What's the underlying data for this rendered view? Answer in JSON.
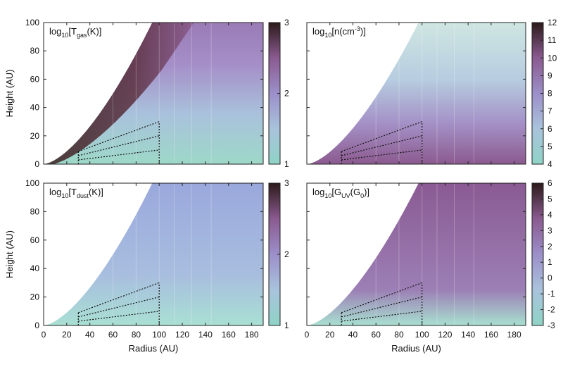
{
  "colors": {
    "scale": [
      "#8fd3c6",
      "#a9c3dc",
      "#9c8fc9",
      "#8a5a90",
      "#2b1a1a"
    ],
    "overlay": "#111111"
  },
  "chart_data": [
    {
      "type": "heatmap",
      "title_parts": {
        "pre": "log",
        "sub1": "10",
        "mid": "[T",
        "sub2": "gas",
        "post": "(K)]"
      },
      "xlabel": "",
      "ylabel": "Height (AU)",
      "xlim": [
        0,
        190
      ],
      "ylim": [
        0,
        100
      ],
      "x_ticks": [],
      "y_ticks": [
        0,
        20,
        40,
        60,
        80,
        100
      ],
      "colorbar": {
        "min": 1,
        "max": 3,
        "ticks": [
          1,
          2,
          3
        ]
      },
      "box": {
        "r_inner": 30,
        "r_outer": 100,
        "z_lines_outer": [
          10,
          20,
          30
        ],
        "z_lines_inner": [
          3,
          6,
          9
        ]
      }
    },
    {
      "type": "heatmap",
      "title_parts": {
        "pre": "log",
        "sub1": "10",
        "mid": "[n(cm",
        "sup": "-3",
        "post": ")]"
      },
      "xlabel": "",
      "ylabel": "",
      "xlim": [
        0,
        190
      ],
      "ylim": [
        0,
        100
      ],
      "x_ticks": [],
      "y_ticks": [],
      "colorbar": {
        "min": 4,
        "max": 12,
        "ticks": [
          4,
          5,
          6,
          7,
          8,
          9,
          10,
          11,
          12
        ]
      },
      "box": {
        "r_inner": 30,
        "r_outer": 100,
        "z_lines_outer": [
          10,
          20,
          30
        ],
        "z_lines_inner": [
          3,
          6,
          9
        ]
      }
    },
    {
      "type": "heatmap",
      "title_parts": {
        "pre": "log",
        "sub1": "10",
        "mid": "[T",
        "sub2": "dust",
        "post": "(K)]"
      },
      "xlabel": "Radius (AU)",
      "ylabel": "Height (AU)",
      "xlim": [
        0,
        190
      ],
      "ylim": [
        0,
        100
      ],
      "x_ticks": [
        0,
        20,
        40,
        60,
        80,
        100,
        120,
        140,
        160,
        180
      ],
      "y_ticks": [
        0,
        20,
        40,
        60,
        80,
        100
      ],
      "colorbar": {
        "min": 1,
        "max": 3,
        "ticks": [
          1,
          2,
          3
        ]
      },
      "box": {
        "r_inner": 30,
        "r_outer": 100,
        "z_lines_outer": [
          10,
          20,
          30
        ],
        "z_lines_inner": [
          3,
          6,
          9
        ]
      }
    },
    {
      "type": "heatmap",
      "title_parts": {
        "pre": "log",
        "sub1": "10",
        "mid": "[G",
        "sub2": "UV",
        "post": "(G",
        "sub3": "0",
        "post2": ")]"
      },
      "xlabel": "Radius (AU)",
      "ylabel": "",
      "xlim": [
        0,
        190
      ],
      "ylim": [
        0,
        100
      ],
      "x_ticks": [
        0,
        20,
        40,
        60,
        80,
        100,
        120,
        140,
        160,
        180
      ],
      "y_ticks": [],
      "colorbar": {
        "min": -3,
        "max": 6,
        "ticks": [
          -3,
          -2,
          -1,
          0,
          1,
          2,
          3,
          4,
          5,
          6
        ]
      },
      "box": {
        "r_inner": 30,
        "r_outer": 100,
        "z_lines_outer": [
          10,
          20,
          30
        ],
        "z_lines_inner": [
          3,
          6,
          9
        ]
      }
    }
  ]
}
